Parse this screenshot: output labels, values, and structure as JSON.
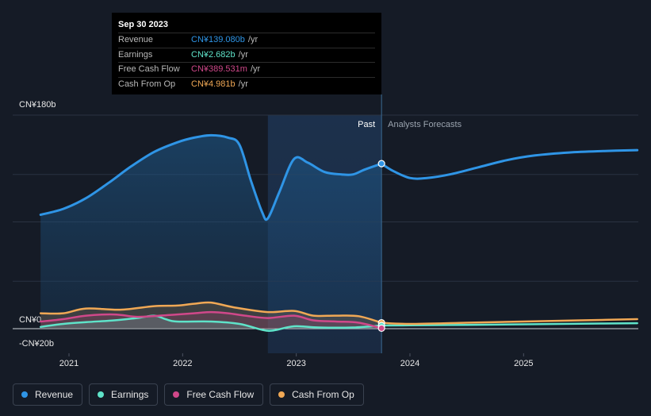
{
  "chart_data": {
    "type": "area",
    "currency_unit": "CN¥",
    "y_ticks": [
      {
        "value": 180,
        "label": "CN¥180b"
      },
      {
        "value": 0,
        "label": "CN¥0"
      },
      {
        "value": -20,
        "label": "-CN¥20b"
      }
    ],
    "ylim": [
      -20,
      180
    ],
    "x_ticks": [
      {
        "value": 2021.0,
        "label": "2021"
      },
      {
        "value": 2022.0,
        "label": "2022"
      },
      {
        "value": 2023.0,
        "label": "2023"
      },
      {
        "value": 2024.0,
        "label": "2024"
      },
      {
        "value": 2025.0,
        "label": "2025"
      }
    ],
    "xlim": [
      2020.5,
      2026.0
    ],
    "past_label": "Past",
    "forecast_label": "Analysts Forecasts",
    "past_end": 2023.75,
    "highlight_start": 2022.75,
    "series": [
      {
        "name": "Revenue",
        "color": "#2f95e6",
        "past": [
          [
            2020.75,
            96
          ],
          [
            2020.95,
            101
          ],
          [
            2021.15,
            110
          ],
          [
            2021.35,
            123
          ],
          [
            2021.55,
            137
          ],
          [
            2021.75,
            149
          ],
          [
            2021.95,
            157
          ],
          [
            2022.1,
            161
          ],
          [
            2022.25,
            163
          ],
          [
            2022.4,
            161
          ],
          [
            2022.5,
            155
          ],
          [
            2022.6,
            125
          ],
          [
            2022.7,
            98
          ],
          [
            2022.75,
            93
          ],
          [
            2022.85,
            115
          ],
          [
            2022.98,
            143
          ],
          [
            2023.1,
            140
          ],
          [
            2023.25,
            132
          ],
          [
            2023.4,
            130
          ],
          [
            2023.5,
            130
          ],
          [
            2023.6,
            134
          ],
          [
            2023.75,
            139.08
          ]
        ],
        "forecast": [
          [
            2023.75,
            139.08
          ],
          [
            2023.85,
            133
          ],
          [
            2024.0,
            127
          ],
          [
            2024.15,
            127
          ],
          [
            2024.35,
            130
          ],
          [
            2024.6,
            136
          ],
          [
            2024.85,
            142
          ],
          [
            2025.1,
            146
          ],
          [
            2025.4,
            148.5
          ],
          [
            2025.7,
            149.7
          ],
          [
            2026.0,
            150.5
          ]
        ]
      },
      {
        "name": "Earnings",
        "color": "#5fe3c9",
        "past": [
          [
            2020.75,
            1.5
          ],
          [
            2020.95,
            4
          ],
          [
            2021.15,
            5.5
          ],
          [
            2021.4,
            7
          ],
          [
            2021.6,
            9
          ],
          [
            2021.75,
            11
          ],
          [
            2021.85,
            8
          ],
          [
            2021.95,
            6
          ],
          [
            2022.25,
            6
          ],
          [
            2022.5,
            4
          ],
          [
            2022.7,
            -1
          ],
          [
            2022.8,
            -1.5
          ],
          [
            2022.98,
            2
          ],
          [
            2023.2,
            1
          ],
          [
            2023.5,
            1
          ],
          [
            2023.75,
            2.682
          ]
        ],
        "forecast": [
          [
            2023.75,
            2.682
          ],
          [
            2024.0,
            2.8
          ],
          [
            2024.5,
            3.2
          ],
          [
            2025.0,
            3.7
          ],
          [
            2025.5,
            4.2
          ],
          [
            2026.0,
            4.6
          ]
        ]
      },
      {
        "name": "Free Cash Flow",
        "color": "#d0488a",
        "past": [
          [
            2020.75,
            6
          ],
          [
            2020.95,
            8
          ],
          [
            2021.15,
            11
          ],
          [
            2021.4,
            12
          ],
          [
            2021.6,
            10
          ],
          [
            2021.8,
            11
          ],
          [
            2021.95,
            12
          ],
          [
            2022.1,
            13
          ],
          [
            2022.25,
            14
          ],
          [
            2022.4,
            13
          ],
          [
            2022.55,
            11
          ],
          [
            2022.75,
            9
          ],
          [
            2022.98,
            11
          ],
          [
            2023.15,
            7
          ],
          [
            2023.35,
            6
          ],
          [
            2023.55,
            5
          ],
          [
            2023.75,
            0.39
          ]
        ],
        "forecast": []
      },
      {
        "name": "Cash From Op",
        "color": "#f0a855",
        "past": [
          [
            2020.75,
            13
          ],
          [
            2020.95,
            13
          ],
          [
            2021.15,
            17
          ],
          [
            2021.45,
            16
          ],
          [
            2021.75,
            19
          ],
          [
            2021.95,
            19.5
          ],
          [
            2022.1,
            21
          ],
          [
            2022.25,
            22
          ],
          [
            2022.45,
            18
          ],
          [
            2022.75,
            14
          ],
          [
            2022.98,
            15
          ],
          [
            2023.15,
            11
          ],
          [
            2023.35,
            11
          ],
          [
            2023.55,
            10.5
          ],
          [
            2023.75,
            4.981
          ]
        ],
        "forecast": [
          [
            2023.75,
            4.981
          ],
          [
            2024.0,
            4
          ],
          [
            2024.5,
            5
          ],
          [
            2025.0,
            6
          ],
          [
            2025.5,
            7
          ],
          [
            2026.0,
            8
          ]
        ]
      }
    ]
  },
  "tooltip": {
    "date": "Sep 30 2023",
    "rows": [
      {
        "label": "Revenue",
        "value": "CN¥139.080b",
        "unit": "/yr",
        "color": "#2f95e6"
      },
      {
        "label": "Earnings",
        "value": "CN¥2.682b",
        "unit": "/yr",
        "color": "#5fe3c9"
      },
      {
        "label": "Free Cash Flow",
        "value": "CN¥389.531m",
        "unit": "/yr",
        "color": "#d0488a"
      },
      {
        "label": "Cash From Op",
        "value": "CN¥4.981b",
        "unit": "/yr",
        "color": "#f0a855"
      }
    ]
  },
  "legend": [
    {
      "label": "Revenue",
      "color": "#2f95e6"
    },
    {
      "label": "Earnings",
      "color": "#5fe3c9"
    },
    {
      "label": "Free Cash Flow",
      "color": "#d0488a"
    },
    {
      "label": "Cash From Op",
      "color": "#f0a855"
    }
  ]
}
